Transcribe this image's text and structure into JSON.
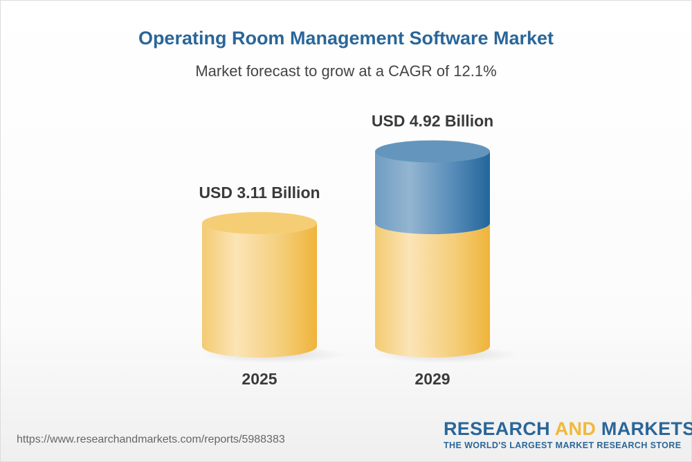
{
  "chart_data": {
    "type": "bar",
    "title": "Operating Room Management Software Market",
    "subtitle": "Market forecast to grow at a CAGR of 12.1%",
    "categories": [
      "2025",
      "2029"
    ],
    "values": [
      3.11,
      4.92
    ],
    "unit": "USD Billion",
    "data_labels": [
      "USD 3.11 Billion",
      "USD 4.92 Billion"
    ],
    "style": "3d-cylinder",
    "colors": {
      "base": "#f0b93a",
      "growth": "#2a6699"
    }
  },
  "footer": {
    "url": "https://www.researchandmarkets.com/reports/5988383",
    "logo_part1": "RESEARCH ",
    "logo_part2": "AND",
    "logo_part3": " MARKETS",
    "tagline": "THE WORLD'S LARGEST MARKET RESEARCH STORE"
  }
}
